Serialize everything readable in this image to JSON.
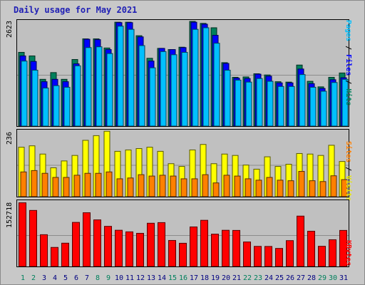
{
  "title": "Daily usage for May 2021",
  "colors": {
    "hits": "#00805c",
    "files": "#0000ff",
    "pages": "#00c0ff",
    "visits": "#ffff00",
    "sites": "#ff8000",
    "kbytes": "#ff0000",
    "weekend_label": "#00805c",
    "weekday_label": "#000080"
  },
  "right_labels": {
    "top": {
      "pages": "Pages",
      "sep1": " / ",
      "files": "Files",
      "sep2": " / ",
      "hits": "Hits"
    },
    "middle": {
      "sites": "Sites",
      "sep": " / ",
      "visits": "Visits"
    },
    "bottom": {
      "kbytes": "KBytes"
    }
  },
  "chart_data": [
    {
      "type": "bar",
      "panel": "hits-files-pages",
      "ylabel_max": "2623",
      "ylim": [
        0,
        2623
      ],
      "categories": [
        "1",
        "2",
        "3",
        "4",
        "5",
        "6",
        "7",
        "8",
        "9",
        "10",
        "11",
        "12",
        "13",
        "14",
        "15",
        "16",
        "17",
        "18",
        "19",
        "20",
        "21",
        "22",
        "23",
        "24",
        "25",
        "26",
        "27",
        "28",
        "29",
        "30",
        "31"
      ],
      "weekend_days": [
        "1",
        "2",
        "8",
        "9",
        "15",
        "16",
        "22",
        "23",
        "29",
        "30"
      ],
      "series": [
        {
          "name": "Hits",
          "values": [
            1860,
            1770,
            1180,
            1350,
            1180,
            1680,
            2200,
            2200,
            1970,
            2620,
            2620,
            2280,
            1710,
            1960,
            1930,
            1990,
            2640,
            2590,
            2480,
            1600,
            1230,
            1240,
            1320,
            1290,
            1120,
            1110,
            1540,
            1130,
            990,
            1230,
            1340
          ]
        },
        {
          "name": "Files",
          "values": [
            1770,
            1630,
            1120,
            1180,
            1120,
            1570,
            2190,
            2180,
            1930,
            2610,
            2610,
            2250,
            1640,
            1960,
            1930,
            1980,
            2620,
            2570,
            2290,
            1580,
            1210,
            1200,
            1310,
            1260,
            1090,
            1090,
            1440,
            1070,
            950,
            1170,
            1220
          ]
        },
        {
          "name": "Pages",
          "values": [
            1640,
            1410,
            960,
            1020,
            980,
            1520,
            1980,
            2000,
            1830,
            2520,
            2440,
            2030,
            1470,
            1880,
            1800,
            1860,
            2440,
            2480,
            2090,
            1410,
            1160,
            1110,
            1200,
            1130,
            1000,
            1000,
            1300,
            980,
            880,
            1100,
            1180
          ]
        }
      ]
    },
    {
      "type": "bar",
      "panel": "visits-sites",
      "ylabel_max": "236",
      "ylim": [
        0,
        236
      ],
      "categories": [
        "1",
        "2",
        "3",
        "4",
        "5",
        "6",
        "7",
        "8",
        "9",
        "10",
        "11",
        "12",
        "13",
        "14",
        "15",
        "16",
        "17",
        "18",
        "19",
        "20",
        "21",
        "22",
        "23",
        "24",
        "25",
        "26",
        "27",
        "28",
        "29",
        "30",
        "31"
      ],
      "series": [
        {
          "name": "Visits",
          "values": [
            180,
            185,
            155,
            105,
            130,
            150,
            205,
            222,
            238,
            165,
            170,
            175,
            180,
            165,
            120,
            110,
            170,
            190,
            120,
            155,
            150,
            115,
            100,
            145,
            110,
            118,
            157,
            155,
            150,
            187,
            128
          ]
        },
        {
          "name": "Sites",
          "values": [
            90,
            95,
            85,
            70,
            70,
            78,
            85,
            85,
            90,
            65,
            68,
            80,
            75,
            78,
            75,
            65,
            65,
            80,
            50,
            78,
            75,
            65,
            60,
            70,
            60,
            58,
            92,
            58,
            55,
            76,
            62
          ]
        }
      ]
    },
    {
      "type": "bar",
      "panel": "kbytes",
      "ylabel_max": "152718",
      "ylim": [
        0,
        152718
      ],
      "categories": [
        "1",
        "2",
        "3",
        "4",
        "5",
        "6",
        "7",
        "8",
        "9",
        "10",
        "11",
        "12",
        "13",
        "14",
        "15",
        "16",
        "17",
        "18",
        "19",
        "20",
        "21",
        "22",
        "23",
        "24",
        "25",
        "26",
        "27",
        "28",
        "29",
        "30",
        "31"
      ],
      "series": [
        {
          "name": "KBytes",
          "values": [
            151700,
            133500,
            75700,
            45400,
            55500,
            105000,
            128000,
            111000,
            95600,
            86300,
            82500,
            79000,
            103000,
            104500,
            62000,
            55300,
            94200,
            110000,
            77000,
            86200,
            85900,
            58400,
            47900,
            47700,
            43000,
            61600,
            120000,
            84000,
            48100,
            63700,
            85900
          ]
        }
      ]
    }
  ]
}
